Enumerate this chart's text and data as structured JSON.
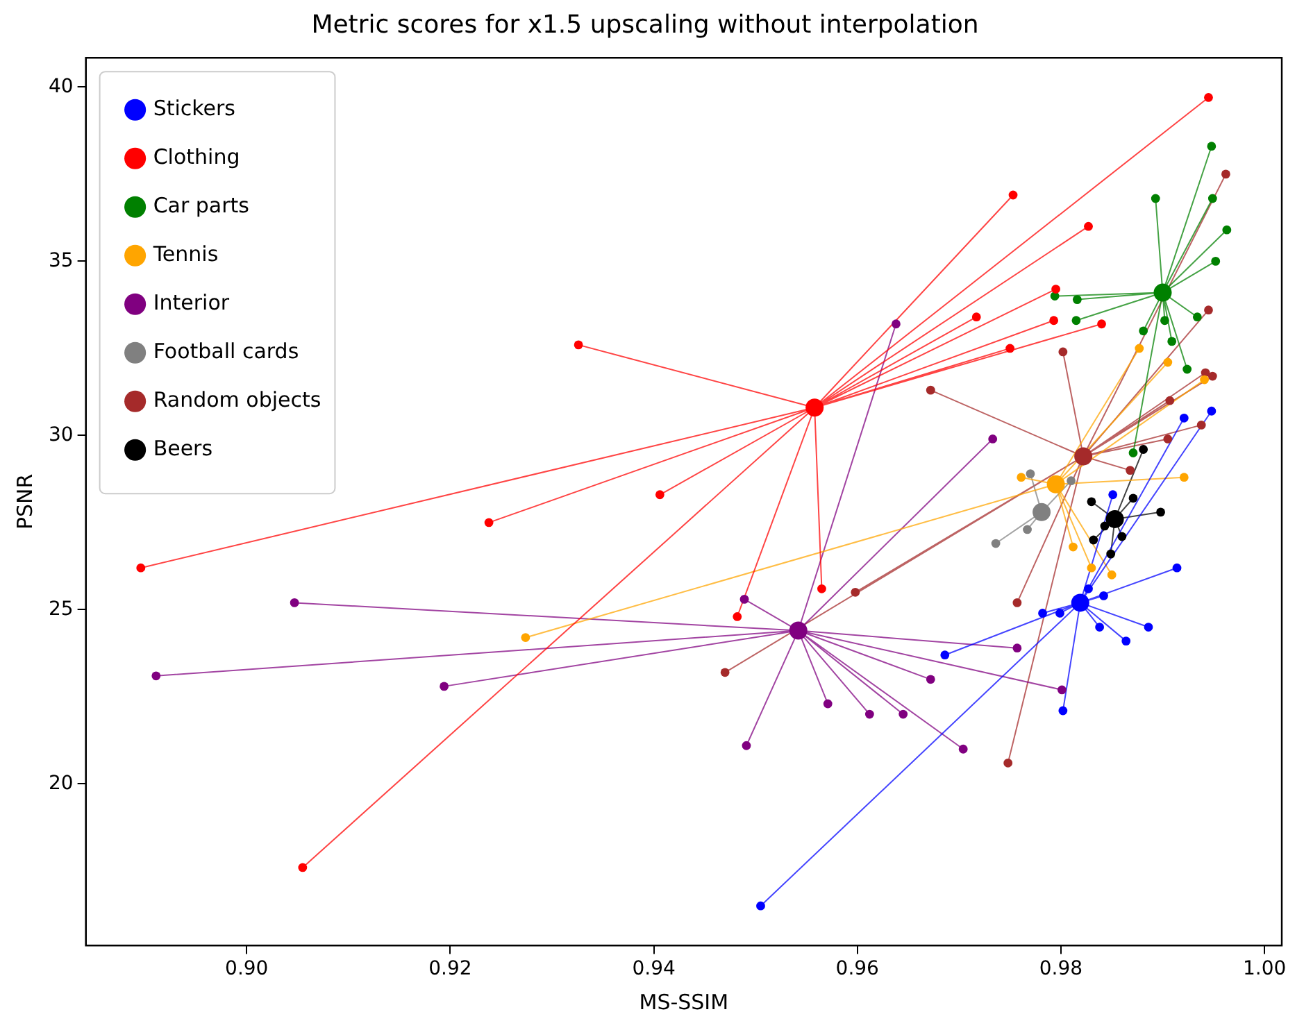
{
  "chart_data": {
    "type": "scatter",
    "title": "Metric scores for x1.5 upscaling without interpolation",
    "xlabel": "MS-SSIM",
    "ylabel": "PSNR",
    "xlim": [
      0.8842,
      1.0017
    ],
    "ylim": [
      15.36,
      40.84
    ],
    "xticks": [
      {
        "value": 0.9,
        "label": "0.90"
      },
      {
        "value": 0.92,
        "label": "0.92"
      },
      {
        "value": 0.94,
        "label": "0.94"
      },
      {
        "value": 0.96,
        "label": "0.96"
      },
      {
        "value": 0.98,
        "label": "0.98"
      },
      {
        "value": 1.0,
        "label": "1.00"
      }
    ],
    "yticks": [
      20,
      25,
      30,
      35,
      40
    ],
    "grid": false,
    "legend": "top left",
    "marker": "circle",
    "series": [
      {
        "type": "line",
        "marker": "none",
        "color": "#0000ff",
        "x": [
          0.9819,
          0.9505,
          0.9819,
          0.9686,
          0.9819,
          0.9782,
          0.9819,
          0.9799,
          0.9819,
          0.9827,
          0.9819,
          0.9842,
          0.9819,
          0.9838,
          0.9819,
          0.9864,
          0.9819,
          0.9886,
          0.9819,
          0.9914,
          0.9819,
          0.9802,
          0.9819,
          0.9851,
          0.9819,
          0.9921,
          0.9819,
          0.9948
        ],
        "values": [
          25.2,
          16.5,
          25.2,
          23.7,
          25.2,
          24.9,
          25.2,
          24.9,
          25.2,
          25.6,
          25.2,
          25.4,
          25.2,
          24.5,
          25.2,
          24.1,
          25.2,
          24.5,
          25.2,
          26.2,
          25.2,
          22.1,
          25.2,
          28.3,
          25.2,
          30.5,
          25.2,
          30.7
        ]
      },
      {
        "type": "line",
        "marker": "none",
        "color": "#ff0000",
        "x": [
          0.9558,
          0.9945,
          0.9558,
          0.9753,
          0.9558,
          0.9827,
          0.9558,
          0.9795,
          0.9558,
          0.9717,
          0.9558,
          0.9793,
          0.9558,
          0.984,
          0.9558,
          0.975,
          0.9558,
          0.9326,
          0.9558,
          0.9406,
          0.9558,
          0.9238,
          0.9558,
          0.8896,
          0.9558,
          0.9565,
          0.9558,
          0.9482,
          0.9558,
          0.9055
        ],
        "values": [
          30.8,
          39.7,
          30.8,
          36.9,
          30.8,
          36.0,
          30.8,
          34.2,
          30.8,
          33.4,
          30.8,
          33.3,
          30.8,
          33.2,
          30.8,
          32.5,
          30.8,
          32.6,
          30.8,
          28.3,
          30.8,
          27.5,
          30.8,
          26.2,
          30.8,
          25.6,
          30.8,
          24.8,
          30.8,
          17.6
        ]
      },
      {
        "type": "line",
        "marker": "none",
        "color": "#008000",
        "x": [
          0.99,
          0.9948,
          0.99,
          0.9893,
          0.99,
          0.9949,
          0.99,
          0.9963,
          0.99,
          0.9952,
          0.99,
          0.9794,
          0.99,
          0.9816,
          0.99,
          0.9815,
          0.99,
          0.9934,
          0.99,
          0.9902,
          0.99,
          0.9881,
          0.99,
          0.9909,
          0.99,
          0.9924,
          0.99,
          0.9871
        ],
        "values": [
          34.1,
          38.3,
          34.1,
          36.8,
          34.1,
          36.8,
          34.1,
          35.9,
          34.1,
          35.0,
          34.1,
          34.0,
          34.1,
          33.9,
          34.1,
          33.3,
          34.1,
          33.4,
          34.1,
          33.3,
          34.1,
          33.0,
          34.1,
          32.7,
          34.1,
          31.9,
          34.1,
          29.5
        ]
      },
      {
        "type": "line",
        "marker": "none",
        "color": "#ffa500",
        "x": [
          0.9795,
          0.9761,
          0.9795,
          0.9877,
          0.9795,
          0.9905,
          0.9795,
          0.9941,
          0.9795,
          0.9921,
          0.9795,
          0.9812,
          0.9795,
          0.983,
          0.9795,
          0.985,
          0.9795,
          0.9274
        ],
        "values": [
          28.6,
          28.8,
          28.6,
          32.5,
          28.6,
          32.1,
          28.6,
          31.6,
          28.6,
          28.8,
          28.6,
          26.8,
          28.6,
          26.2,
          28.6,
          26.0,
          28.6,
          24.2
        ]
      },
      {
        "type": "line",
        "marker": "none",
        "color": "#800080",
        "x": [
          0.9542,
          0.9638,
          0.9542,
          0.9733,
          0.9542,
          0.9047,
          0.9542,
          0.8911,
          0.9542,
          0.9194,
          0.9542,
          0.9489,
          0.9542,
          0.9757,
          0.9542,
          0.9672,
          0.9542,
          0.9801,
          0.9542,
          0.9571,
          0.9542,
          0.9612,
          0.9542,
          0.9645,
          0.9542,
          0.9491,
          0.9542,
          0.9704
        ],
        "values": [
          24.4,
          33.2,
          24.4,
          29.9,
          24.4,
          25.2,
          24.4,
          23.1,
          24.4,
          22.8,
          24.4,
          25.3,
          24.4,
          23.9,
          24.4,
          23.0,
          24.4,
          22.7,
          24.4,
          22.3,
          24.4,
          22.0,
          24.4,
          22.0,
          24.4,
          21.1,
          24.4,
          21.0
        ]
      },
      {
        "type": "line",
        "marker": "none",
        "color": "#808080",
        "x": [
          0.9781,
          0.977,
          0.9781,
          0.981,
          0.9781,
          0.9767,
          0.9781,
          0.9736
        ],
        "values": [
          27.8,
          28.9,
          27.8,
          28.7,
          27.8,
          27.3,
          27.8,
          26.9
        ]
      },
      {
        "type": "line",
        "marker": "none",
        "color": "#a52a2a",
        "x": [
          0.9822,
          0.9962,
          0.9822,
          0.9945,
          0.9822,
          0.9802,
          0.9822,
          0.9672,
          0.9822,
          0.9942,
          0.9822,
          0.9949,
          0.9822,
          0.9907,
          0.9822,
          0.9938,
          0.9822,
          0.9905,
          0.9822,
          0.9868,
          0.9822,
          0.9757,
          0.9822,
          0.9748,
          0.9822,
          0.947,
          0.9822,
          0.9598
        ],
        "values": [
          29.4,
          37.5,
          29.4,
          33.6,
          29.4,
          32.4,
          29.4,
          31.3,
          29.4,
          31.8,
          29.4,
          31.7,
          29.4,
          31.0,
          29.4,
          30.3,
          29.4,
          29.9,
          29.4,
          29.0,
          29.4,
          25.2,
          29.4,
          20.6,
          29.4,
          23.2,
          29.4,
          25.5
        ]
      },
      {
        "type": "line",
        "marker": "none",
        "color": "#000000",
        "x": [
          0.9853,
          0.9881,
          0.9853,
          0.9871,
          0.9853,
          0.9898,
          0.9853,
          0.983,
          0.9853,
          0.9832,
          0.9853,
          0.9849,
          0.9853,
          0.9843,
          0.9853,
          0.986
        ],
        "values": [
          27.6,
          29.6,
          27.6,
          28.2,
          27.6,
          27.8,
          27.6,
          28.1,
          27.6,
          27.0,
          27.6,
          26.6,
          27.6,
          27.4,
          27.6,
          27.1
        ]
      },
      {
        "name": "Stickers",
        "color": "#0000ff",
        "x": [
          0.9505,
          0.9686,
          0.9782,
          0.9799,
          0.9827,
          0.9842,
          0.9838,
          0.9864,
          0.9886,
          0.9914,
          0.9802,
          0.9851,
          0.9921,
          0.9948
        ],
        "values": [
          16.5,
          23.7,
          24.9,
          24.9,
          25.6,
          25.4,
          24.5,
          24.1,
          24.5,
          26.2,
          22.1,
          28.3,
          30.5,
          30.7
        ]
      },
      {
        "name": "Clothing",
        "color": "#ff0000",
        "x": [
          0.9945,
          0.9753,
          0.9827,
          0.9795,
          0.9717,
          0.9793,
          0.984,
          0.975,
          0.9326,
          0.9406,
          0.9238,
          0.8896,
          0.9565,
          0.9482,
          0.9055
        ],
        "values": [
          39.7,
          36.9,
          36.0,
          34.2,
          33.4,
          33.3,
          33.2,
          32.5,
          32.6,
          28.3,
          27.5,
          26.2,
          25.6,
          24.8,
          17.6
        ]
      },
      {
        "name": "Car parts",
        "color": "#008000",
        "x": [
          0.9948,
          0.9893,
          0.9949,
          0.9963,
          0.9952,
          0.9794,
          0.9816,
          0.9815,
          0.9934,
          0.9902,
          0.9881,
          0.9909,
          0.9924,
          0.9871
        ],
        "values": [
          38.3,
          36.8,
          36.8,
          35.9,
          35.0,
          34.0,
          33.9,
          33.3,
          33.4,
          33.3,
          33.0,
          32.7,
          31.9,
          29.5
        ]
      },
      {
        "name": "Tennis",
        "color": "#ffa500",
        "x": [
          0.9761,
          0.9877,
          0.9905,
          0.9941,
          0.9921,
          0.9812,
          0.983,
          0.985,
          0.9274
        ],
        "values": [
          28.8,
          32.5,
          32.1,
          31.6,
          28.8,
          26.8,
          26.2,
          26.0,
          24.2
        ]
      },
      {
        "name": "Interior",
        "color": "#800080",
        "x": [
          0.9638,
          0.9733,
          0.9047,
          0.8911,
          0.9194,
          0.9489,
          0.9757,
          0.9672,
          0.9801,
          0.9571,
          0.9612,
          0.9645,
          0.9491,
          0.9704
        ],
        "values": [
          33.2,
          29.9,
          25.2,
          23.1,
          22.8,
          25.3,
          23.9,
          23.0,
          22.7,
          22.3,
          22.0,
          22.0,
          21.1,
          21.0
        ]
      },
      {
        "name": "Football cards",
        "color": "#808080",
        "x": [
          0.977,
          0.981,
          0.9767,
          0.9736
        ],
        "values": [
          28.9,
          28.7,
          27.3,
          26.9
        ]
      },
      {
        "name": "Random objects",
        "color": "#a52a2a",
        "x": [
          0.9962,
          0.9945,
          0.9802,
          0.9672,
          0.9942,
          0.9949,
          0.9907,
          0.9938,
          0.9905,
          0.9868,
          0.9757,
          0.9748,
          0.947,
          0.9598
        ],
        "values": [
          37.5,
          33.6,
          32.4,
          31.3,
          31.8,
          31.7,
          31.0,
          30.3,
          29.9,
          29.0,
          25.2,
          20.6,
          23.2,
          25.5
        ]
      },
      {
        "name": "Beers",
        "color": "#000000",
        "x": [
          0.9881,
          0.9871,
          0.9898,
          0.983,
          0.9832,
          0.9849,
          0.9843,
          0.986
        ],
        "values": [
          29.6,
          28.2,
          27.8,
          28.1,
          27.0,
          26.6,
          27.4,
          27.1
        ]
      },
      {
        "type": "bubble",
        "colors": [
          "#0000ff",
          "#ff0000",
          "#008000",
          "#ffa500",
          "#800080",
          "#808080",
          "#a52a2a",
          "#000000"
        ],
        "x": [
          0.9819,
          0.9558,
          0.99,
          0.9795,
          0.9542,
          0.9781,
          0.9822,
          0.9853
        ],
        "values": [
          25.2,
          30.8,
          34.1,
          28.6,
          24.4,
          27.8,
          29.4,
          27.6
        ],
        "sizes": [
          1,
          1,
          1,
          1,
          1,
          1,
          1,
          1
        ]
      }
    ]
  }
}
